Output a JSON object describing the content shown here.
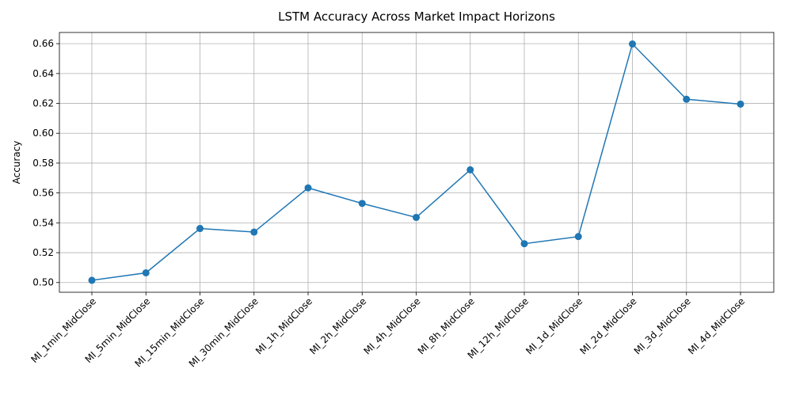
{
  "chart_data": {
    "type": "line",
    "title": "LSTM Accuracy Across Market Impact Horizons",
    "xlabel": "",
    "ylabel": "Accuracy",
    "categories": [
      "MI_1min_MidClose",
      "MI_5min_MidClose",
      "MI_15min_MidClose",
      "MI_30min_MidClose",
      "MI_1h_MidClose",
      "MI_2h_MidClose",
      "MI_4h_MidClose",
      "MI_8h_MidClose",
      "MI_12h_MidClose",
      "MI_1d_MidClose",
      "MI_2d_MidClose",
      "MI_3d_MidClose",
      "MI_4d_MidClose"
    ],
    "values": [
      0.5015,
      0.5065,
      0.5362,
      0.5338,
      0.5634,
      0.553,
      0.5436,
      0.5755,
      0.526,
      0.5308,
      0.6598,
      0.6228,
      0.6195
    ],
    "ylim": [
      0.4935,
      0.6675
    ],
    "yticks": [
      "0.50",
      "0.52",
      "0.54",
      "0.56",
      "0.58",
      "0.60",
      "0.62",
      "0.64",
      "0.66"
    ],
    "grid": true,
    "color": "#1f77b4",
    "marker": "circle"
  }
}
